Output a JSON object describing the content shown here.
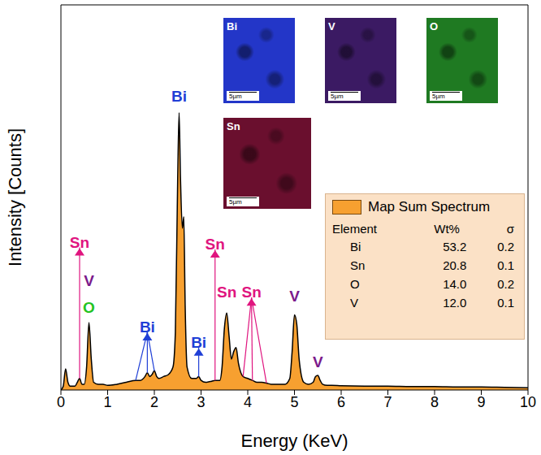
{
  "chart_data": {
    "type": "area",
    "x_label": "Energy (KeV)",
    "y_label": "Intensity [Counts]",
    "xlim": [
      0,
      10
    ],
    "xticks": [
      0,
      1,
      2,
      3,
      4,
      5,
      6,
      7,
      8,
      9,
      10
    ],
    "ylim": [
      0,
      100
    ],
    "tick_labels": "x",
    "legend": "right",
    "x": [
      0,
      0.05,
      0.1,
      0.15,
      0.2,
      0.3,
      0.35,
      0.4,
      0.45,
      0.5,
      0.55,
      0.6,
      0.65,
      0.7,
      0.8,
      0.9,
      1.0,
      1.2,
      1.4,
      1.6,
      1.7,
      1.8,
      1.85,
      1.9,
      1.95,
      2.0,
      2.05,
      2.1,
      2.2,
      2.3,
      2.4,
      2.45,
      2.5,
      2.53,
      2.56,
      2.6,
      2.63,
      2.66,
      2.7,
      2.8,
      2.9,
      2.95,
      3.0,
      3.1,
      3.2,
      3.3,
      3.4,
      3.45,
      3.5,
      3.55,
      3.6,
      3.65,
      3.7,
      3.75,
      3.8,
      3.9,
      4.0,
      4.1,
      4.2,
      4.3,
      4.4,
      4.5,
      4.6,
      4.8,
      4.9,
      4.95,
      5.0,
      5.05,
      5.1,
      5.2,
      5.3,
      5.4,
      5.45,
      5.5,
      5.55,
      5.6,
      5.7,
      5.8,
      6.0,
      6.5,
      7.0,
      7.5,
      8.0,
      8.5,
      9.0,
      9.5,
      10.0
    ],
    "series": [
      {
        "name": "Map Sum Spectrum",
        "color": "#f7a030",
        "values": [
          0,
          1,
          5.5,
          2,
          1,
          1,
          2,
          3,
          1.5,
          1.5,
          6,
          17.5,
          8,
          2,
          1.5,
          1.5,
          1.2,
          1.5,
          2,
          2.5,
          2.5,
          3.5,
          4.5,
          3.5,
          4,
          5,
          3.5,
          3,
          3.5,
          4,
          6,
          15,
          55,
          72,
          55,
          42,
          45,
          22,
          6,
          3,
          3,
          3.5,
          2.5,
          2,
          2.2,
          2.5,
          2.5,
          6,
          16,
          20,
          14,
          8,
          10,
          11,
          7,
          3.5,
          3,
          2.5,
          2,
          2,
          1.8,
          1.5,
          1.5,
          1.5,
          3,
          10,
          19.5,
          17,
          8,
          2,
          1.5,
          2,
          3.5,
          3.8,
          2.5,
          1.5,
          1.2,
          1.2,
          1.1,
          1,
          1,
          0.9,
          0.9,
          0.8,
          0.8,
          0.7,
          0.6
        ]
      }
    ],
    "annotations": [
      {
        "text": "Sn",
        "color": "#e0157f",
        "x": 0.4,
        "y": 37,
        "points": [
          [
            0.4,
            3
          ]
        ]
      },
      {
        "text": "V",
        "color": "#7b1a8c",
        "x": 0.6,
        "y": 27
      },
      {
        "text": "O",
        "color": "#22c322",
        "x": 0.6,
        "y": 20
      },
      {
        "text": "Bi",
        "color": "#1f3fd6",
        "x": 1.85,
        "y": 15,
        "points": [
          [
            1.6,
            2.5
          ],
          [
            1.85,
            4.5
          ],
          [
            2.0,
            5
          ]
        ]
      },
      {
        "text": "Bi",
        "color": "#1f3fd6",
        "x": 2.53,
        "y": 75
      },
      {
        "text": "Bi",
        "color": "#1f3fd6",
        "x": 2.95,
        "y": 11,
        "points": [
          [
            2.95,
            3.5
          ]
        ]
      },
      {
        "text": "Sn",
        "color": "#e0157f",
        "x": 3.3,
        "y": 36.5,
        "points": [
          [
            3.3,
            2.5
          ]
        ]
      },
      {
        "text": "Sn",
        "color": "#e0157f",
        "x": 3.55,
        "y": 24
      },
      {
        "text": "Sn",
        "color": "#e0157f",
        "x": 4.08,
        "y": 24,
        "points": [
          [
            3.9,
            3.5
          ],
          [
            4.1,
            2.5
          ],
          [
            4.4,
            1.8
          ]
        ]
      },
      {
        "text": "V",
        "color": "#7b1a8c",
        "x": 5.0,
        "y": 23
      },
      {
        "text": "V",
        "color": "#7b1a8c",
        "x": 5.5,
        "y": 6
      }
    ],
    "table": {
      "columns": [
        "Element",
        "Wt%",
        "σ"
      ],
      "rows": [
        [
          "Bi",
          "53.2",
          "0.2"
        ],
        [
          "Sn",
          "20.8",
          "0.1"
        ],
        [
          "O",
          "14.0",
          "0.2"
        ],
        [
          "V",
          "12.0",
          "0.1"
        ]
      ]
    },
    "maps": [
      {
        "label": "Bi",
        "color": "#2336c8",
        "scale": "5µm"
      },
      {
        "label": "V",
        "color": "#3b1a63",
        "scale": "5µm"
      },
      {
        "label": "O",
        "color": "#1f7a22",
        "scale": "5µm"
      },
      {
        "label": "Sn",
        "color": "#6a0f2e",
        "scale": "5µm"
      }
    ]
  }
}
